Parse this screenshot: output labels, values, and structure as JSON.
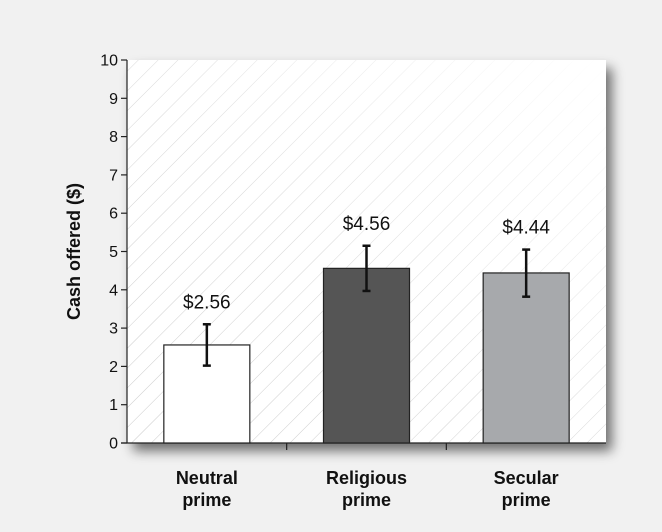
{
  "chart_data": {
    "type": "bar",
    "categories": [
      "Neutral\nprime",
      "Religious\nprime",
      "Secular\nprime"
    ],
    "values": [
      2.56,
      4.56,
      4.44
    ],
    "value_labels": [
      "$2.56",
      "$4.56",
      "$4.44"
    ],
    "error_bars": [
      [
        2.02,
        3.1
      ],
      [
        3.97,
        5.15
      ],
      [
        3.82,
        5.05
      ]
    ],
    "bar_colors": [
      "#ffffff",
      "#555555",
      "#a7a9ac"
    ],
    "ylabel": "Cash offered ($)",
    "ylim": [
      0,
      10
    ],
    "yticks": [
      0,
      1,
      2,
      3,
      4,
      5,
      6,
      7,
      8,
      9,
      10
    ],
    "grid": false,
    "background": "diagonal-hatch-with-shadow"
  }
}
